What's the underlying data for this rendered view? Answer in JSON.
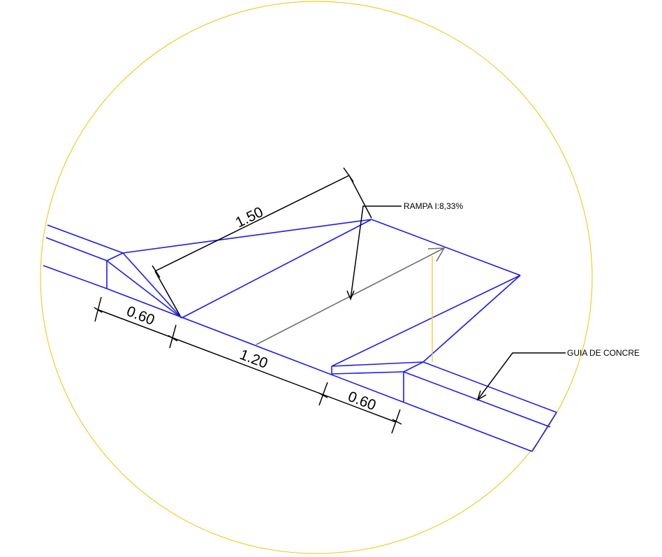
{
  "labels": {
    "ramp_note": "RAMPA I:8,33%",
    "curb_note": "GUIA DE CONCRE"
  },
  "dimensions": {
    "ramp_length": "1.50",
    "left_wing": "0.60",
    "ramp_width": "1.20",
    "right_wing": "0.60"
  },
  "colors": {
    "circle": "#f2cc2e",
    "geometry": "#1a1af0",
    "dimension": "#000000",
    "slope_arrow": "#707070",
    "background": "#ffffff"
  }
}
